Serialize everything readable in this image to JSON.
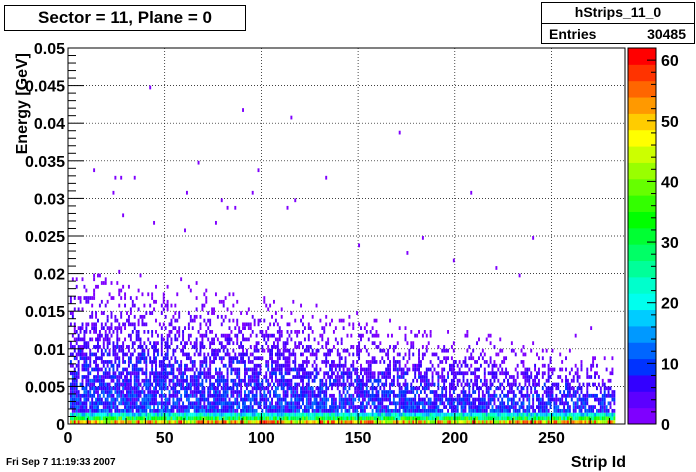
{
  "title": "Sector = 11, Plane = 0",
  "stats": {
    "name": "hStrips_11_0",
    "entries_label": "Entries",
    "entries_value": "30485"
  },
  "footer_date": "Fri Sep  7 11:19:33 2007",
  "chart_data": {
    "type": "heatmap",
    "title": "Sector = 11, Plane = 0",
    "xlabel": "Strip Id",
    "ylabel": "Energy [GeV]",
    "xlim": [
      0,
      288
    ],
    "ylim": [
      0,
      0.05
    ],
    "x_ticks": [
      0,
      50,
      100,
      150,
      200,
      250
    ],
    "y_ticks": [
      0,
      0.005,
      0.01,
      0.015,
      0.02,
      0.025,
      0.03,
      0.035,
      0.04,
      0.045,
      0.05
    ],
    "y_tick_labels": [
      "0",
      "0.005",
      "0.01",
      "0.015",
      "0.02",
      "0.025",
      "0.03",
      "0.035",
      "0.04",
      "0.045",
      "0.05"
    ],
    "z_range": [
      0,
      62
    ],
    "z_ticks": [
      0,
      10,
      20,
      30,
      40,
      50,
      60
    ],
    "grid": true,
    "colorbar": "right",
    "palette": [
      "#7f00ff",
      "#5c00ff",
      "#3300ff",
      "#0033ff",
      "#0066ff",
      "#0099ff",
      "#00ccff",
      "#00ffee",
      "#00ffcc",
      "#00ff99",
      "#00ff66",
      "#00ff33",
      "#00ff00",
      "#33ff00",
      "#66ff00",
      "#99ff00",
      "#ccff00",
      "#ffff00",
      "#ffcc00",
      "#ff9900",
      "#ff6600",
      "#ff3300",
      "#ff0000"
    ],
    "scattered_hits": [
      [
        42,
        0.0445
      ],
      [
        90,
        0.0415
      ],
      [
        115,
        0.0405
      ],
      [
        171,
        0.0385
      ],
      [
        13,
        0.0335
      ],
      [
        24,
        0.0325
      ],
      [
        27,
        0.0325
      ],
      [
        34,
        0.0325
      ],
      [
        67,
        0.0345
      ],
      [
        98,
        0.0335
      ],
      [
        133,
        0.0325
      ],
      [
        95,
        0.0305
      ],
      [
        117,
        0.0295
      ],
      [
        23,
        0.0305
      ],
      [
        61,
        0.0305
      ],
      [
        79,
        0.0295
      ],
      [
        113,
        0.0285
      ],
      [
        28,
        0.0275
      ],
      [
        82,
        0.0285
      ],
      [
        86,
        0.0285
      ],
      [
        208,
        0.0305
      ],
      [
        240,
        0.0245
      ],
      [
        183,
        0.0245
      ],
      [
        44,
        0.0265
      ],
      [
        60,
        0.0255
      ],
      [
        76,
        0.0265
      ],
      [
        150,
        0.0235
      ],
      [
        175,
        0.0225
      ],
      [
        199,
        0.0215
      ],
      [
        221,
        0.0205
      ],
      [
        233,
        0.0195
      ],
      [
        262,
        0.0115
      ],
      [
        270,
        0.0125
      ],
      [
        281,
        0.0085
      ]
    ]
  }
}
